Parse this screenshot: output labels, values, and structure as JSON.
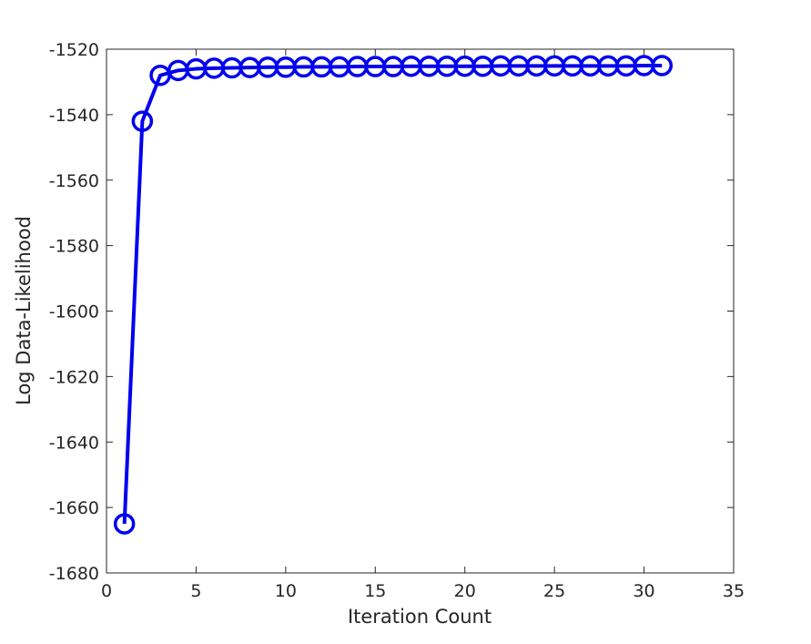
{
  "chart_data": {
    "type": "line",
    "title": "",
    "xlabel": "Iteration Count",
    "ylabel": "Log Data-Likelihood",
    "xlim": [
      0,
      35
    ],
    "ylim": [
      -1680,
      -1520
    ],
    "xticks": [
      0,
      5,
      10,
      15,
      20,
      25,
      30,
      35
    ],
    "yticks": [
      -1680,
      -1660,
      -1640,
      -1620,
      -1600,
      -1580,
      -1560,
      -1540,
      -1520
    ],
    "grid": false,
    "legend": "none",
    "series": [
      {
        "color": "#0000ee",
        "marker": "circle",
        "x": [
          1,
          2,
          3,
          4,
          5,
          6,
          7,
          8,
          9,
          10,
          11,
          12,
          13,
          14,
          15,
          16,
          17,
          18,
          19,
          20,
          21,
          22,
          23,
          24,
          25,
          26,
          27,
          28,
          29,
          30,
          31
        ],
        "values": [
          -1665,
          -1542,
          -1528,
          -1526.5,
          -1526,
          -1525.8,
          -1525.7,
          -1525.6,
          -1525.5,
          -1525.5,
          -1525.4,
          -1525.4,
          -1525.4,
          -1525.3,
          -1525.3,
          -1525.3,
          -1525.2,
          -1525.2,
          -1525.2,
          -1525.2,
          -1525.2,
          -1525.1,
          -1525.1,
          -1525.1,
          -1525.1,
          -1525.1,
          -1525.1,
          -1525.1,
          -1525.1,
          -1525.0,
          -1525.0
        ]
      }
    ]
  }
}
